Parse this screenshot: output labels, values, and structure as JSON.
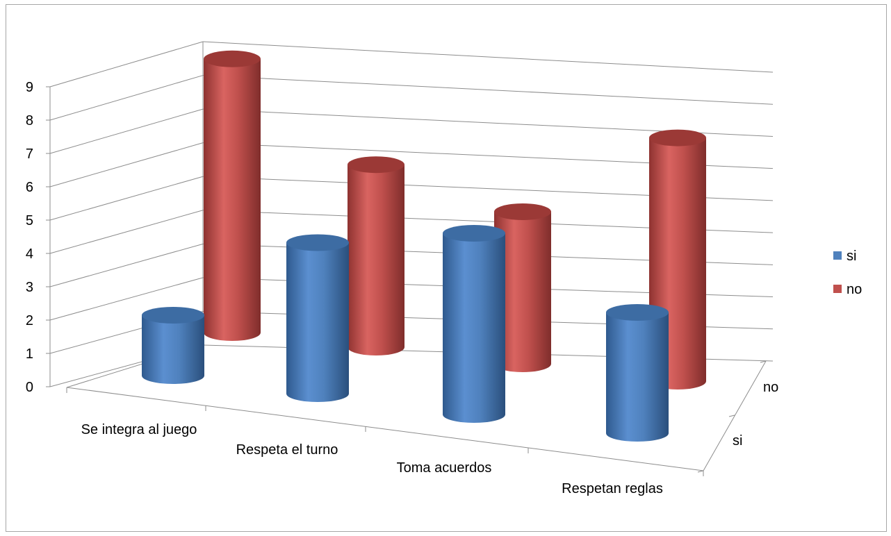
{
  "chart_data": {
    "type": "bar",
    "style": "3d-cylinder",
    "categories": [
      "Se integra al juego",
      "Respeta el turno",
      "Toma acuerdos",
      "Respetan reglas"
    ],
    "series": [
      {
        "name": "si",
        "values": [
          2,
          5,
          6,
          4
        ],
        "color": "#4f81bd"
      },
      {
        "name": "no",
        "values": [
          9,
          6,
          5,
          8
        ],
        "color": "#c0504d"
      }
    ],
    "y_ticks": [
      "0",
      "1",
      "2",
      "3",
      "4",
      "5",
      "6",
      "7",
      "8",
      "9"
    ],
    "depth_labels": [
      "si",
      "no"
    ],
    "ylim": [
      0,
      9
    ],
    "grid": true,
    "legend_position": "right"
  }
}
